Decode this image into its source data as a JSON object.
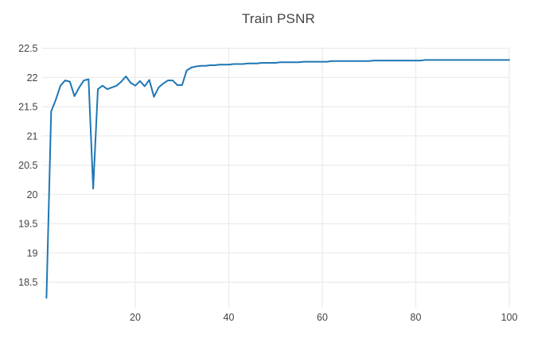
{
  "chart_data": {
    "type": "line",
    "title": "Train PSNR",
    "xlabel": "",
    "ylabel": "",
    "series_name": "Train PSNR",
    "x": [
      1,
      2,
      3,
      4,
      5,
      6,
      7,
      8,
      9,
      10,
      11,
      12,
      13,
      14,
      15,
      16,
      17,
      18,
      19,
      20,
      21,
      22,
      23,
      24,
      25,
      26,
      27,
      28,
      29,
      30,
      31,
      32,
      33,
      34,
      35,
      36,
      37,
      38,
      39,
      40,
      41,
      42,
      43,
      44,
      45,
      46,
      47,
      48,
      49,
      50,
      51,
      52,
      53,
      54,
      55,
      56,
      57,
      58,
      59,
      60,
      61,
      62,
      63,
      64,
      65,
      66,
      67,
      68,
      69,
      70,
      71,
      72,
      73,
      74,
      75,
      76,
      77,
      78,
      79,
      80,
      81,
      82,
      83,
      84,
      85,
      86,
      87,
      88,
      89,
      90,
      91,
      92,
      93,
      94,
      95,
      96,
      97,
      98,
      99,
      100
    ],
    "y": [
      18.23,
      21.42,
      21.62,
      21.86,
      21.95,
      21.93,
      21.68,
      21.83,
      21.95,
      21.97,
      20.1,
      21.8,
      21.86,
      21.8,
      21.83,
      21.86,
      21.93,
      22.02,
      21.91,
      21.86,
      21.94,
      21.85,
      21.96,
      21.67,
      21.83,
      21.9,
      21.95,
      21.95,
      21.87,
      21.87,
      22.12,
      22.17,
      22.19,
      22.2,
      22.2,
      22.21,
      22.21,
      22.22,
      22.22,
      22.22,
      22.23,
      22.23,
      22.23,
      22.24,
      22.24,
      22.24,
      22.25,
      22.25,
      22.25,
      22.25,
      22.26,
      22.26,
      22.26,
      22.26,
      22.26,
      22.27,
      22.27,
      22.27,
      22.27,
      22.27,
      22.27,
      22.28,
      22.28,
      22.28,
      22.28,
      22.28,
      22.28,
      22.28,
      22.28,
      22.28,
      22.29,
      22.29,
      22.29,
      22.29,
      22.29,
      22.29,
      22.29,
      22.29,
      22.29,
      22.29,
      22.29,
      22.3,
      22.3,
      22.3,
      22.3,
      22.3,
      22.3,
      22.3,
      22.3,
      22.3,
      22.3,
      22.3,
      22.3,
      22.3,
      22.3,
      22.3,
      22.3,
      22.3,
      22.3,
      22.3
    ],
    "xticks": [
      20,
      40,
      60,
      80,
      100
    ],
    "yticks": [
      18.5,
      19,
      19.5,
      20,
      20.5,
      21,
      21.5,
      22,
      22.5
    ],
    "xlim": [
      0,
      100
    ],
    "ylim": [
      18.06,
      22.55
    ],
    "grid": true,
    "legend": false,
    "colors": {
      "line": "#1f77b4",
      "grid": "#ececec",
      "text": "#444444",
      "background": "#ffffff"
    }
  }
}
